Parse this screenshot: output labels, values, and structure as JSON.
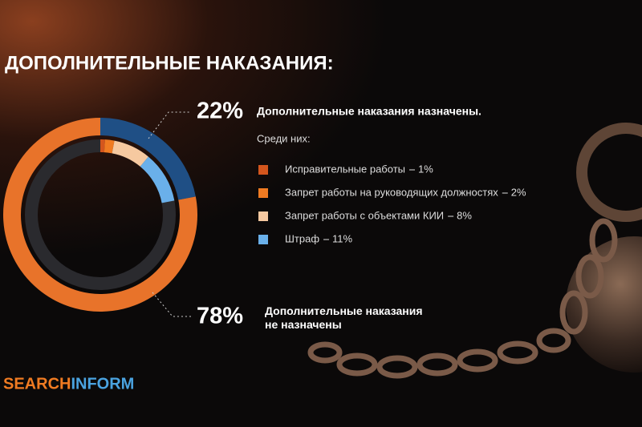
{
  "chart_data": {
    "type": "donut",
    "title": "ДОПОЛНИТЕЛЬНЫЕ НАКАЗАНИЯ:",
    "categories": [
      "Дополнительные наказания назначены.",
      "Дополнительные наказания не назначены"
    ],
    "values": [
      22,
      78
    ],
    "value_labels": [
      "22%",
      "78%"
    ],
    "colors": [
      "#1f4f85",
      "#e8732a"
    ],
    "subtitle": "Среди них:",
    "breakdown": {
      "categories": [
        "Исправительные работы",
        "Запрет работы на руководящих должностях",
        "Запрет работы с объектами КИИ",
        "Штраф"
      ],
      "values": [
        1,
        2,
        8,
        11
      ],
      "value_labels": [
        "1%",
        "2%",
        "8%",
        "11%"
      ],
      "colors": [
        "#d4561d",
        "#f07b22",
        "#f6c9a0",
        "#6ab0ea"
      ]
    }
  },
  "logo": {
    "parts": [
      "SEARCH",
      "INFORM"
    ],
    "colors": [
      "#f07b22",
      "#4aa3e0"
    ]
  }
}
